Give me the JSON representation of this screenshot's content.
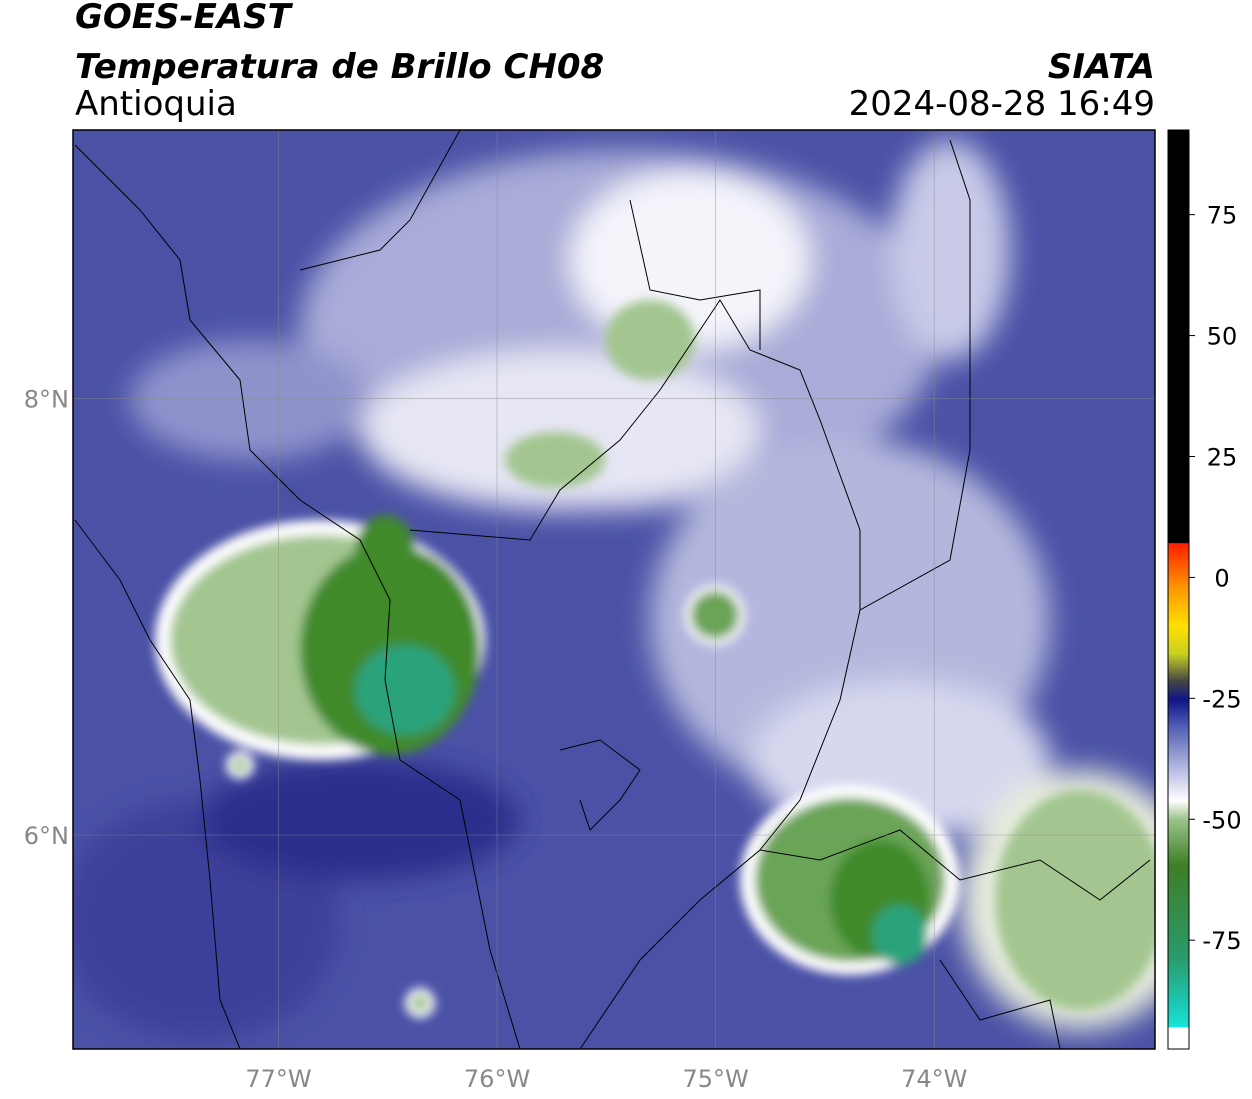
{
  "header": {
    "title": "GOES-EAST",
    "subtitle": "Temperatura de Brillo CH08",
    "region": "Antioquia",
    "source": "SIATA",
    "timestamp": "2024-08-28 16:49"
  },
  "map": {
    "xlim": [
      -77.94,
      -72.99
    ],
    "ylim": [
      5.02,
      9.23
    ],
    "xticks": [
      {
        "value": -77,
        "label": "77°W"
      },
      {
        "value": -76,
        "label": "76°W"
      },
      {
        "value": -75,
        "label": "75°W"
      },
      {
        "value": -74,
        "label": "74°W"
      }
    ],
    "yticks": [
      {
        "value": 6,
        "label": "6°N"
      },
      {
        "value": 8,
        "label": "8°N"
      }
    ],
    "grid": true
  },
  "colorbar": {
    "lim": [
      -97.5,
      92.5
    ],
    "ticks": [
      -75,
      -50,
      -25,
      0,
      25,
      50,
      75
    ]
  }
}
